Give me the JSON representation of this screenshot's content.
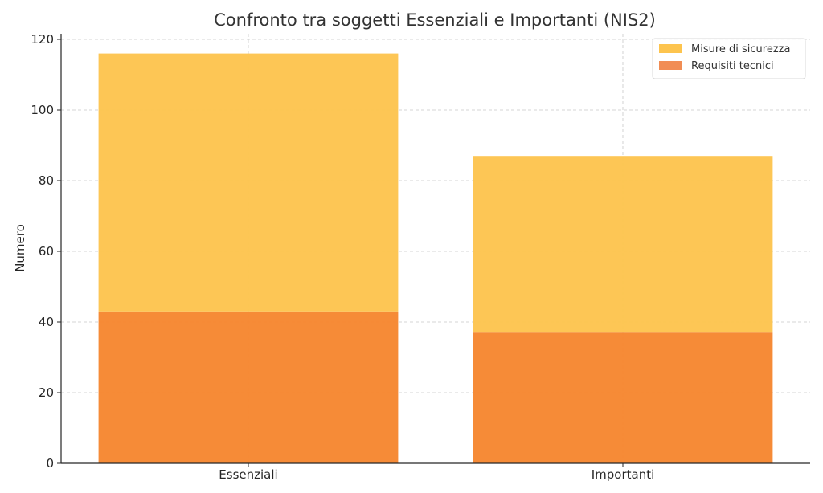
{
  "chart_data": {
    "type": "bar",
    "stacked": true,
    "title": "Confronto tra soggetti Essenziali e Importanti (NIS2)",
    "xlabel": "",
    "ylabel": "Numero",
    "categories": [
      "Essenziali",
      "Importanti"
    ],
    "series": [
      {
        "name": "Requisiti tecnici",
        "values": [
          43,
          37
        ],
        "color": "#f6862f"
      },
      {
        "name": "Misure di sicurezza",
        "values": [
          73,
          50
        ],
        "color": "#fdc44e"
      }
    ],
    "legend_order": [
      "Misure di sicurezza",
      "Requisiti tecnici"
    ],
    "legend_colors": [
      "#fdc44e",
      "#f18d54"
    ],
    "ylim": [
      0,
      120
    ],
    "yticks": [
      0,
      20,
      40,
      60,
      80,
      100,
      120
    ],
    "grid": true,
    "legend_position": "top-right"
  }
}
